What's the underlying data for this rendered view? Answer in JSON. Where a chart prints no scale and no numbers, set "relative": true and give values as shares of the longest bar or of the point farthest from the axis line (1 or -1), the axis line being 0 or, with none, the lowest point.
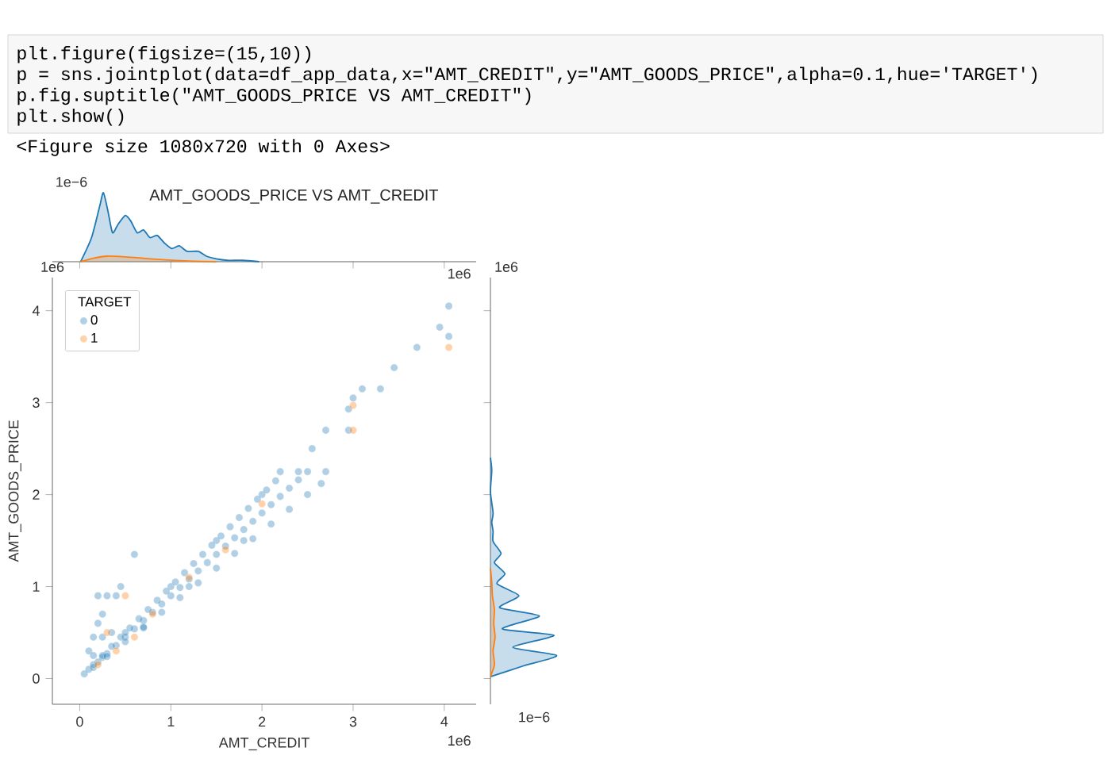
{
  "chart_data": [
    {
      "type": "other",
      "annotations": [
        "plt.figure(figsize=(15,10))",
        "p = sns.jointplot(data=df_app_data,x=\"AMT_CREDIT\",y=\"AMT_GOODS_PRICE\",alpha=0.1,hue='TARGET')",
        "p.fig.suptitle(\"AMT_GOODS_PRICE VS AMT_CREDIT\")",
        "plt.show()",
        "<Figure size 1080x720 with 0 Axes>"
      ]
    },
    {
      "type": "scatter",
      "title": "AMT_GOODS_PRICE VS AMT_CREDIT",
      "xlabel": "AMT_CREDIT",
      "ylabel": "AMT_GOODS_PRICE",
      "xlim": [
        -0.3,
        4.35
      ],
      "ylim": [
        -0.28,
        4.36
      ],
      "xticks": [
        0,
        1,
        2,
        3,
        4
      ],
      "yticks": [
        0,
        1,
        2,
        3,
        4
      ],
      "legend": "top left",
      "legend_title": "TARGET",
      "marker": "circle",
      "annotations": [
        "1e6",
        "1e6"
      ],
      "series": [
        {
          "name": "0",
          "color": "#1f77b4",
          "x": [
            0.05,
            0.1,
            0.15,
            0.2,
            0.25,
            0.3,
            0.4,
            0.5,
            0.6,
            0.7,
            0.8,
            0.9,
            1.0,
            1.1,
            1.2,
            1.3,
            1.4,
            1.5,
            1.6,
            1.7,
            1.8,
            1.9,
            2.0,
            2.1,
            2.2,
            2.3,
            2.4,
            2.5,
            2.7,
            0.3,
            0.2,
            0.4,
            0.15,
            0.2,
            0.25,
            0.6,
            0.45,
            0.5,
            1.0,
            1.5,
            2.0,
            2.2,
            2.4,
            0.7,
            1.2,
            1.8,
            2.55,
            2.7,
            2.95,
            2.95,
            3.1,
            3.45,
            3.7,
            4.05,
            3.95,
            4.05,
            3.3,
            3.0,
            0.15,
            0.25,
            0.35,
            0.45,
            0.55,
            0.65,
            0.75,
            0.85,
            0.95,
            1.05,
            1.15,
            1.25,
            1.35,
            1.45,
            1.55,
            1.65,
            1.75,
            1.85,
            1.95,
            2.05,
            2.15,
            0.3,
            0.5,
            0.7,
            0.9,
            1.1,
            1.3,
            1.5,
            1.7,
            1.9,
            2.1,
            2.3,
            2.5,
            2.65,
            0.1,
            0.15,
            0.25,
            0.35
          ],
          "values": [
            0.05,
            0.1,
            0.12,
            0.18,
            0.23,
            0.27,
            0.36,
            0.45,
            0.54,
            0.63,
            0.72,
            0.81,
            0.9,
            0.99,
            1.08,
            1.17,
            1.26,
            1.35,
            1.44,
            1.53,
            1.62,
            1.71,
            1.8,
            1.89,
            1.98,
            2.07,
            2.16,
            2.25,
            2.25,
            0.9,
            0.9,
            0.9,
            0.45,
            0.6,
            0.45,
            1.35,
            1.0,
            0.5,
            1.0,
            1.5,
            2.0,
            2.25,
            2.25,
            0.55,
            1.0,
            1.5,
            2.5,
            2.7,
            2.7,
            2.93,
            3.15,
            3.38,
            3.6,
            4.05,
            3.82,
            3.72,
            3.15,
            3.05,
            0.15,
            0.25,
            0.35,
            0.45,
            0.55,
            0.65,
            0.75,
            0.85,
            0.95,
            1.05,
            1.15,
            1.25,
            1.35,
            1.45,
            1.55,
            1.65,
            1.75,
            1.85,
            1.95,
            2.05,
            2.15,
            0.24,
            0.4,
            0.56,
            0.72,
            0.88,
            1.04,
            1.2,
            1.36,
            1.52,
            1.68,
            1.84,
            2.0,
            2.12,
            0.3,
            0.25,
            0.7,
            0.5
          ]
        },
        {
          "name": "1",
          "color": "#ff7f0e",
          "x": [
            0.2,
            0.3,
            0.5,
            0.8,
            1.2,
            1.6,
            2.0,
            3.0,
            3.0,
            4.05,
            0.4,
            0.6
          ],
          "values": [
            0.15,
            0.5,
            0.9,
            0.7,
            1.1,
            1.4,
            1.9,
            2.97,
            2.7,
            3.6,
            0.3,
            0.45
          ]
        }
      ]
    },
    {
      "type": "area",
      "relative": true,
      "xlim": [
        -0.3,
        4.35
      ],
      "xticks": [
        0,
        1,
        2,
        3,
        4
      ],
      "tick_labels": false,
      "annotations": [
        "1e−6",
        "1e6"
      ],
      "series": [
        {
          "color": "#1f77b4",
          "x": [
            0.01,
            0.13,
            0.22,
            0.26,
            0.31,
            0.36,
            0.42,
            0.5,
            0.56,
            0.63,
            0.7,
            0.77,
            0.85,
            0.93,
            1.01,
            1.09,
            1.18,
            1.3,
            1.39,
            1.5,
            1.62,
            1.79,
            1.97
          ],
          "values": [
            0,
            0.35,
            0.81,
            1,
            0.73,
            0.42,
            0.54,
            0.67,
            0.59,
            0.42,
            0.46,
            0.35,
            0.38,
            0.27,
            0.19,
            0.23,
            0.15,
            0.15,
            0.08,
            0.04,
            0.02,
            0.02,
            0
          ]
        },
        {
          "color": "#ff7f0e",
          "x": [
            0.01,
            0.15,
            0.3,
            0.5,
            0.7,
            0.9,
            1.2,
            1.5
          ],
          "values": [
            0,
            0.05,
            0.08,
            0.07,
            0.05,
            0.03,
            0.01,
            0
          ]
        }
      ]
    },
    {
      "type": "area",
      "relative": true,
      "orientation": "horizontal",
      "ylim": [
        -0.28,
        4.36
      ],
      "yticks": [
        0,
        1,
        2,
        3,
        4
      ],
      "tick_labels": false,
      "annotations": [
        "1e6",
        "1e−6"
      ],
      "series": [
        {
          "color": "#1f77b4",
          "x": [
            0.02,
            0.14,
            0.25,
            0.34,
            0.47,
            0.54,
            0.68,
            0.77,
            0.9,
            1.03,
            1.14,
            1.26,
            1.36,
            1.49,
            1.6,
            1.7,
            1.8,
            2.03,
            2.26,
            2.4
          ],
          "values": [
            0,
            0.51,
            1,
            0.34,
            0.96,
            0.18,
            0.74,
            0.14,
            0.43,
            0.1,
            0.22,
            0.06,
            0.16,
            0.04,
            0.04,
            0.02,
            0.04,
            0,
            0.02,
            0
          ]
        },
        {
          "color": "#ff7f0e",
          "x": [
            0.02,
            0.15,
            0.3,
            0.45,
            0.6,
            0.75,
            0.9,
            1.05,
            1.2
          ],
          "values": [
            0,
            0.06,
            0.04,
            0.07,
            0.05,
            0.06,
            0.03,
            0.02,
            0
          ]
        }
      ]
    }
  ]
}
